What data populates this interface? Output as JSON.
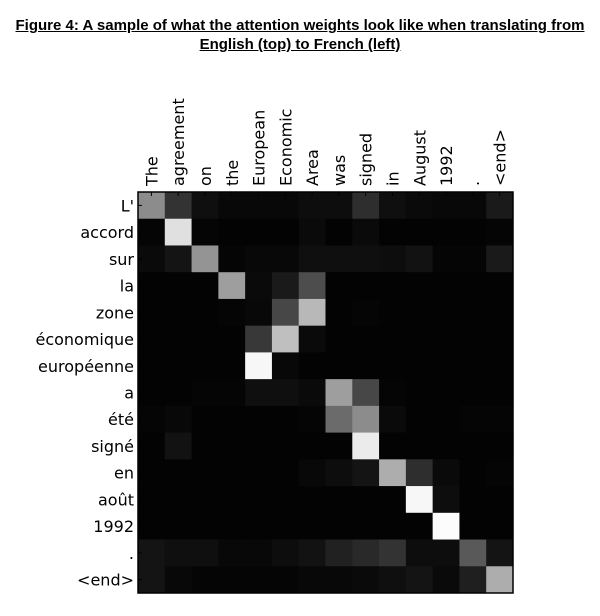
{
  "caption": {
    "line1": "Figure 4: A sample of what the attention weights look like when translating from",
    "line2": "English (top) to French (left)"
  },
  "chart_data": {
    "type": "heatmap",
    "title": "",
    "colormap": "gray",
    "x_position": "top",
    "grid": false,
    "x": [
      "The",
      "agreement",
      "on",
      "the",
      "European",
      "Economic",
      "Area",
      "was",
      "signed",
      "in",
      "August",
      "1992",
      ".",
      "<end>"
    ],
    "y": [
      "L'",
      "accord",
      "sur",
      "la",
      "zone",
      "économique",
      "européenne",
      "a",
      "été",
      "signé",
      "en",
      "août",
      "1992",
      ".",
      "<end>"
    ],
    "values": [
      [
        0.55,
        0.2,
        0.06,
        0.03,
        0.03,
        0.03,
        0.05,
        0.05,
        0.18,
        0.06,
        0.04,
        0.03,
        0.03,
        0.1
      ],
      [
        0.02,
        0.88,
        0.02,
        0.01,
        0.01,
        0.01,
        0.04,
        0.01,
        0.04,
        0.01,
        0.01,
        0.01,
        0.01,
        0.02
      ],
      [
        0.04,
        0.08,
        0.58,
        0.02,
        0.03,
        0.03,
        0.06,
        0.06,
        0.06,
        0.05,
        0.07,
        0.02,
        0.02,
        0.1
      ],
      [
        0.01,
        0.01,
        0.01,
        0.62,
        0.04,
        0.1,
        0.3,
        0.01,
        0.01,
        0.01,
        0.01,
        0.01,
        0.01,
        0.01
      ],
      [
        0.01,
        0.01,
        0.01,
        0.02,
        0.03,
        0.28,
        0.72,
        0.01,
        0.02,
        0.01,
        0.01,
        0.01,
        0.01,
        0.01
      ],
      [
        0.01,
        0.01,
        0.01,
        0.01,
        0.22,
        0.75,
        0.04,
        0.01,
        0.01,
        0.01,
        0.01,
        0.01,
        0.01,
        0.01
      ],
      [
        0.01,
        0.01,
        0.01,
        0.01,
        0.97,
        0.03,
        0.01,
        0.01,
        0.01,
        0.01,
        0.01,
        0.01,
        0.01,
        0.01
      ],
      [
        0.01,
        0.01,
        0.02,
        0.02,
        0.06,
        0.06,
        0.04,
        0.62,
        0.28,
        0.02,
        0.01,
        0.01,
        0.01,
        0.01
      ],
      [
        0.02,
        0.03,
        0.01,
        0.01,
        0.01,
        0.01,
        0.02,
        0.42,
        0.55,
        0.04,
        0.01,
        0.01,
        0.02,
        0.02
      ],
      [
        0.01,
        0.07,
        0.01,
        0.01,
        0.01,
        0.01,
        0.01,
        0.01,
        0.92,
        0.01,
        0.01,
        0.01,
        0.01,
        0.01
      ],
      [
        0.01,
        0.01,
        0.01,
        0.01,
        0.01,
        0.01,
        0.03,
        0.05,
        0.08,
        0.68,
        0.18,
        0.04,
        0.01,
        0.02
      ],
      [
        0.01,
        0.01,
        0.01,
        0.01,
        0.01,
        0.01,
        0.01,
        0.01,
        0.01,
        0.01,
        0.97,
        0.05,
        0.01,
        0.01
      ],
      [
        0.01,
        0.01,
        0.01,
        0.01,
        0.01,
        0.01,
        0.01,
        0.01,
        0.01,
        0.01,
        0.01,
        0.99,
        0.01,
        0.01
      ],
      [
        0.08,
        0.06,
        0.06,
        0.03,
        0.03,
        0.05,
        0.07,
        0.13,
        0.16,
        0.2,
        0.05,
        0.05,
        0.35,
        0.08
      ],
      [
        0.08,
        0.03,
        0.02,
        0.02,
        0.02,
        0.02,
        0.03,
        0.03,
        0.04,
        0.06,
        0.08,
        0.04,
        0.12,
        0.68
      ]
    ]
  }
}
